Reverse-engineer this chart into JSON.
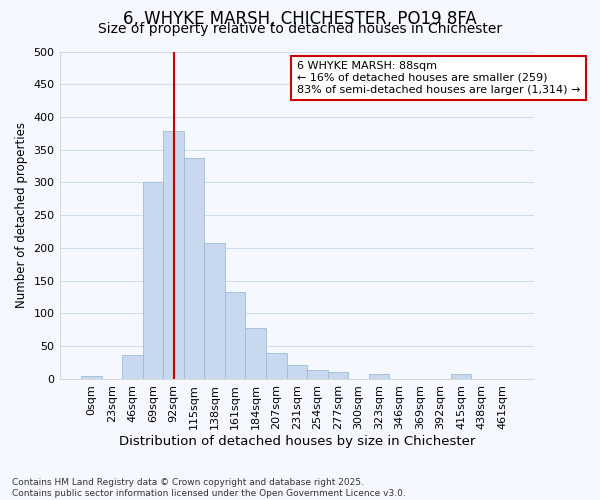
{
  "title": "6, WHYKE MARSH, CHICHESTER, PO19 8FA",
  "subtitle": "Size of property relative to detached houses in Chichester",
  "xlabel": "Distribution of detached houses by size in Chichester",
  "ylabel": "Number of detached properties",
  "bar_labels": [
    "0sqm",
    "23sqm",
    "46sqm",
    "69sqm",
    "92sqm",
    "115sqm",
    "138sqm",
    "161sqm",
    "184sqm",
    "207sqm",
    "231sqm",
    "254sqm",
    "277sqm",
    "300sqm",
    "323sqm",
    "346sqm",
    "369sqm",
    "392sqm",
    "415sqm",
    "438sqm",
    "461sqm"
  ],
  "bar_values": [
    5,
    0,
    37,
    300,
    378,
    337,
    208,
    133,
    78,
    40,
    22,
    13,
    10,
    0,
    8,
    0,
    0,
    0,
    8,
    0,
    0
  ],
  "bar_color": "#c8d8ee",
  "bar_edge_color": "#a0bcd8",
  "vline_x_index": 4,
  "vline_color": "#cc0000",
  "annotation_text": "6 WHYKE MARSH: 88sqm\n← 16% of detached houses are smaller (259)\n83% of semi-detached houses are larger (1,314) →",
  "annotation_box_color": "#ffffff",
  "annotation_box_edge": "#cc0000",
  "ylim": [
    0,
    500
  ],
  "yticks": [
    0,
    50,
    100,
    150,
    200,
    250,
    300,
    350,
    400,
    450,
    500
  ],
  "title_fontsize": 12,
  "subtitle_fontsize": 10,
  "xlabel_fontsize": 9.5,
  "ylabel_fontsize": 8.5,
  "tick_fontsize": 8,
  "footer_line1": "Contains HM Land Registry data © Crown copyright and database right 2025.",
  "footer_line2": "Contains public sector information licensed under the Open Government Licence v3.0.",
  "background_color": "#f5f8fe",
  "grid_color": "#d0ddf0"
}
